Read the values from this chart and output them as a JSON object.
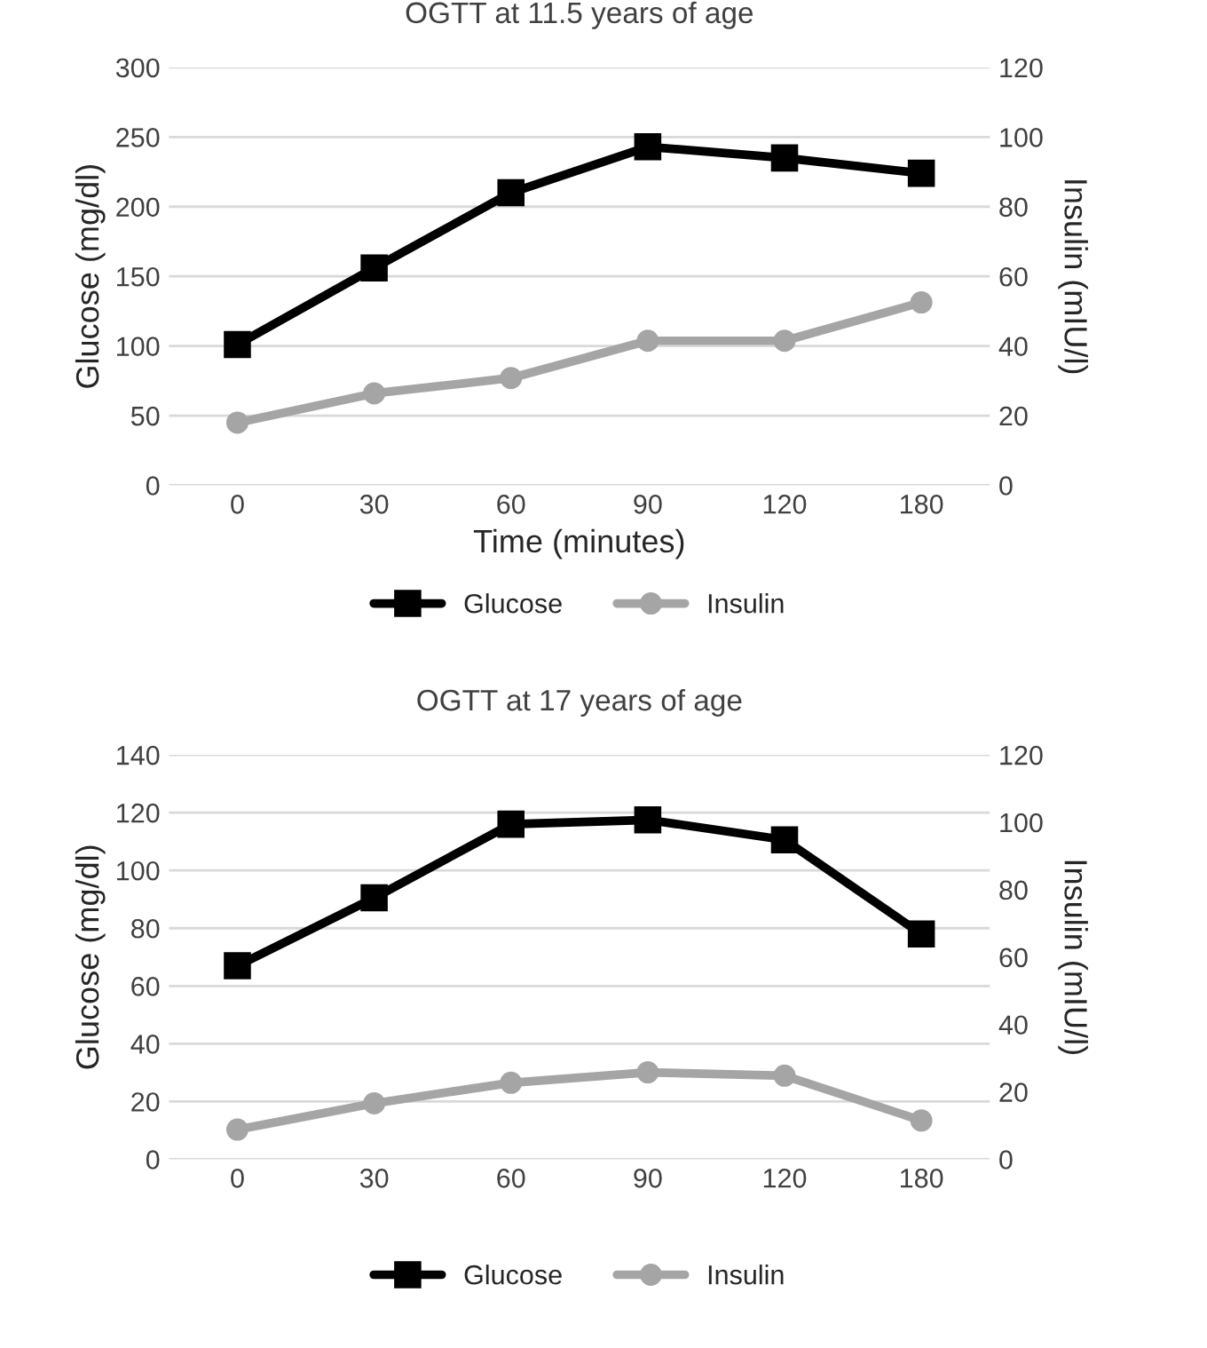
{
  "chart_data": [
    {
      "type": "line",
      "title": "OGTT at 11.5 years of age",
      "xlabel": "Time (minutes)",
      "ylabel": "Glucose (mg/dl)",
      "y2label": "Insulin (mIU/l)",
      "categories": [
        "0",
        "30",
        "60",
        "90",
        "120",
        "180"
      ],
      "series": [
        {
          "name": "Glucose",
          "color": "#000000",
          "marker": "square",
          "values": [
            101,
            156,
            210,
            243,
            235,
            224
          ]
        },
        {
          "name": "Insulin",
          "color": "#a5a5a5",
          "marker": "circle",
          "axis": "y2",
          "values": [
            18,
            26.4,
            30.8,
            41.5,
            41.5,
            52.5
          ]
        }
      ],
      "ylim": [
        0,
        300
      ],
      "yticks": [
        0,
        50,
        100,
        150,
        200,
        250,
        300
      ],
      "y2lim": [
        0,
        120
      ],
      "y2ticks": [
        0,
        20,
        40,
        60,
        80,
        100,
        120
      ],
      "grid": "y",
      "legend": "bottom"
    },
    {
      "type": "line",
      "title": "OGTT at 17 years of age",
      "ylabel": "Glucose (mg/dl)",
      "y2label": "Insulin (mIU/l)",
      "categories": [
        "0",
        "30",
        "60",
        "90",
        "120",
        "180"
      ],
      "series": [
        {
          "name": "Glucose",
          "color": "#000000",
          "marker": "square",
          "values": [
            67,
            90.5,
            116,
            117.5,
            110.6,
            78
          ]
        },
        {
          "name": "Insulin",
          "color": "#a5a5a5",
          "marker": "circle",
          "axis": "y2",
          "values": [
            8.8,
            16.6,
            22.7,
            25.8,
            24.8,
            11.5
          ]
        }
      ],
      "ylim": [
        0,
        140
      ],
      "yticks": [
        0,
        20,
        40,
        60,
        80,
        100,
        120,
        140
      ],
      "y2lim": [
        0,
        120
      ],
      "y2ticks": [
        0,
        20,
        40,
        60,
        80,
        100,
        120
      ],
      "grid": "y",
      "legend": "bottom"
    }
  ]
}
